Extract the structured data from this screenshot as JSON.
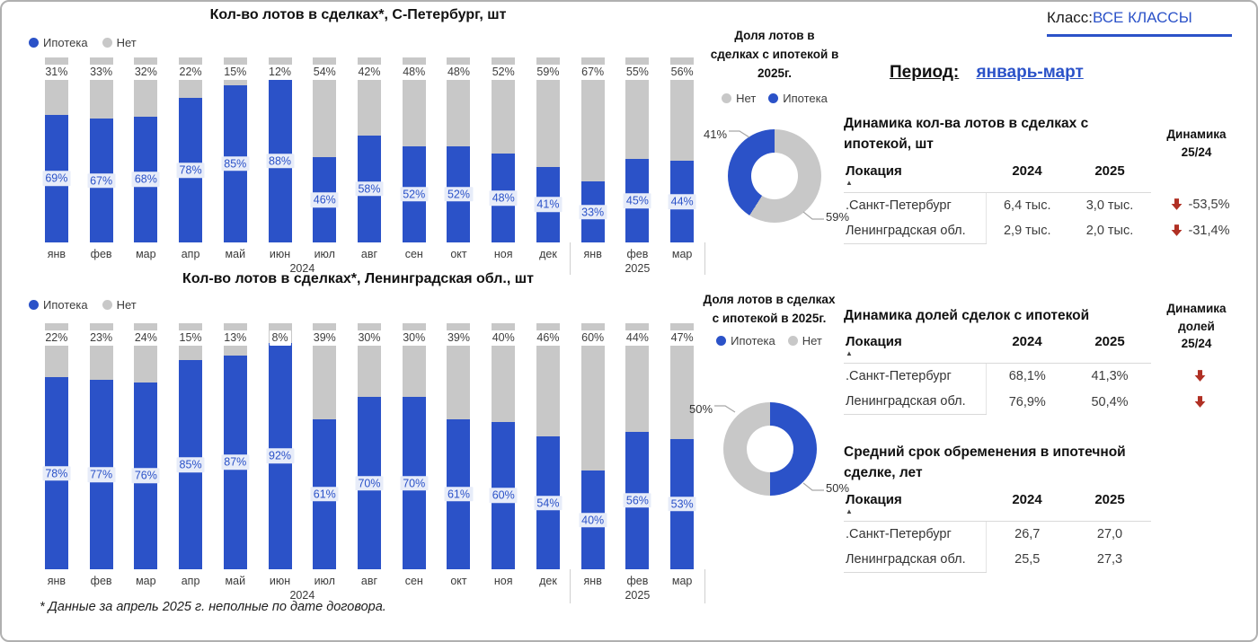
{
  "page": {
    "footnote": "* Данные за апрель 2025 г. неполные по дате договора."
  },
  "filters": {
    "class_label": "Класс:",
    "class_value": "ВСЕ КЛАССЫ",
    "period_label": "Период:",
    "period_value": "январь-март"
  },
  "colors": {
    "mortgage": "#2b52c8",
    "no_mortgage": "#c8c8c8",
    "arrow_red": "#b03024"
  },
  "chart_data": [
    {
      "type": "bar",
      "subtype": "stacked-100-percent",
      "title": "Кол-во лотов в сделках*, С-Петербург, шт",
      "categories": [
        "янв",
        "фев",
        "мар",
        "апр",
        "май",
        "июн",
        "июл",
        "авг",
        "сен",
        "окт",
        "ноя",
        "дек",
        "янв",
        "фев",
        "мар"
      ],
      "year_groups": [
        {
          "label": "2024",
          "months": 12
        },
        {
          "label": "2025",
          "months": 3
        }
      ],
      "series": [
        {
          "name": "Ипотека",
          "values": [
            69,
            67,
            68,
            78,
            85,
            88,
            46,
            58,
            52,
            52,
            48,
            41,
            33,
            45,
            44
          ]
        },
        {
          "name": "Нет",
          "values": [
            31,
            33,
            32,
            22,
            15,
            12,
            54,
            42,
            48,
            48,
            52,
            59,
            67,
            55,
            56
          ]
        }
      ],
      "unit": "%"
    },
    {
      "type": "bar",
      "subtype": "stacked-100-percent",
      "title": "Кол-во лотов в сделках*, Ленинградская обл., шт",
      "categories": [
        "янв",
        "фев",
        "мар",
        "апр",
        "май",
        "июн",
        "июл",
        "авг",
        "сен",
        "окт",
        "ноя",
        "дек",
        "янв",
        "фев",
        "мар"
      ],
      "year_groups": [
        {
          "label": "2024",
          "months": 12
        },
        {
          "label": "2025",
          "months": 3
        }
      ],
      "series": [
        {
          "name": "Ипотека",
          "values": [
            78,
            77,
            76,
            85,
            87,
            92,
            61,
            70,
            70,
            61,
            60,
            54,
            40,
            56,
            53
          ]
        },
        {
          "name": "Нет",
          "values": [
            22,
            23,
            24,
            15,
            13,
            8,
            39,
            30,
            30,
            39,
            40,
            46,
            60,
            44,
            47
          ]
        }
      ],
      "unit": "%"
    },
    {
      "type": "pie",
      "subtype": "donut",
      "title": "Доля лотов в\nсделках с ипотекой в\n2025г.",
      "legend": [
        {
          "label": "Нет"
        },
        {
          "label": "Ипотека"
        }
      ],
      "slices_clockwise_from_top": [
        {
          "label": "Нет",
          "value": 59
        },
        {
          "label": "Ипотека",
          "value": 41
        }
      ],
      "callouts": [
        {
          "text": "41%"
        },
        {
          "text": "59%"
        }
      ]
    },
    {
      "type": "pie",
      "subtype": "donut",
      "title": "Доля лотов в сделках\nс ипотекой в 2025г.",
      "legend": [
        {
          "label": "Ипотека"
        },
        {
          "label": "Нет"
        }
      ],
      "slices_clockwise_from_top": [
        {
          "label": "Ипотека",
          "value": 50
        },
        {
          "label": "Нет",
          "value": 50
        }
      ],
      "callouts": [
        {
          "text": "50%"
        },
        {
          "text": "50%"
        }
      ]
    }
  ],
  "tables": [
    {
      "title": "Динамика кол-ва лотов в сделках с ипотекой, шт",
      "change_header": "Динамика\n25/24",
      "columns": [
        "Локация",
        "2024",
        "2025"
      ],
      "rows": [
        {
          "location": ".Санкт-Петербург",
          "y2024": "6,4 тыс.",
          "y2025": "3,0 тыс.",
          "trend": "down",
          "change": "-53,5%"
        },
        {
          "location": "Ленинградская обл.",
          "y2024": "2,9 тыс.",
          "y2025": "2,0 тыс.",
          "trend": "down",
          "change": "-31,4%"
        }
      ]
    },
    {
      "title": "Динамика долей сделок с ипотекой",
      "change_header": "Динамика\nдолей\n25/24",
      "columns": [
        "Локация",
        "2024",
        "2025"
      ],
      "rows": [
        {
          "location": ".Санкт-Петербург",
          "y2024": "68,1%",
          "y2025": "41,3%",
          "trend": "down",
          "change": ""
        },
        {
          "location": "Ленинградская обл.",
          "y2024": "76,9%",
          "y2025": "50,4%",
          "trend": "down",
          "change": ""
        }
      ]
    },
    {
      "title": "Средний срок обременения в ипотечной сделке, лет",
      "change_header": "",
      "columns": [
        "Локация",
        "2024",
        "2025"
      ],
      "rows": [
        {
          "location": ".Санкт-Петербург",
          "y2024": "26,7",
          "y2025": "27,0"
        },
        {
          "location": "Ленинградская обл.",
          "y2024": "25,5",
          "y2025": "27,3"
        }
      ]
    }
  ]
}
